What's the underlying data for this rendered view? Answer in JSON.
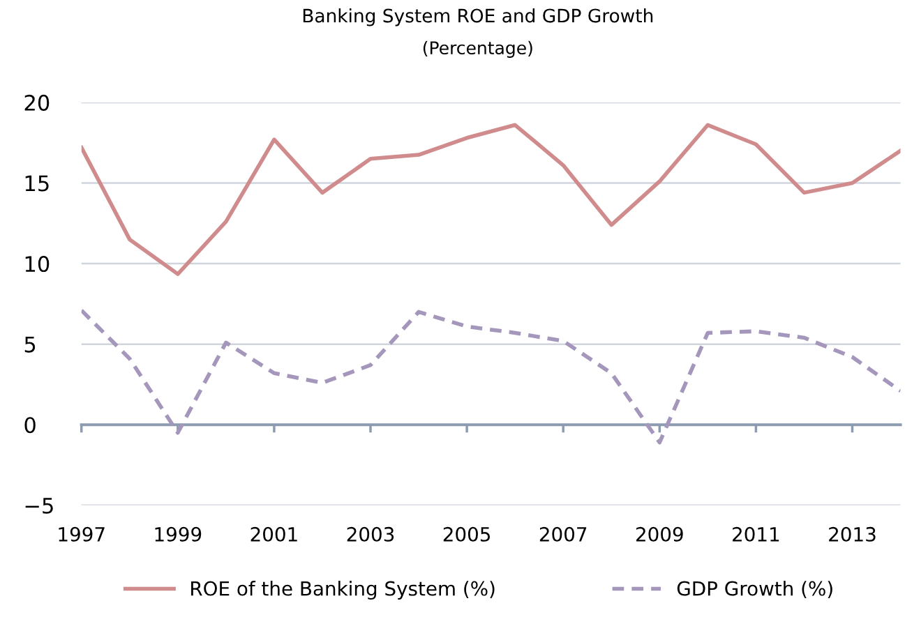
{
  "chart_data": {
    "type": "line",
    "title": "Banking System ROE and GDP Growth",
    "subtitle": "(Percentage)",
    "x": [
      1997,
      1998,
      1999,
      2000,
      2001,
      2002,
      2003,
      2004,
      2005,
      2006,
      2007,
      2008,
      2009,
      2010,
      2011,
      2012,
      2013,
      2014
    ],
    "series": [
      {
        "name": "ROE of the Banking System (%)",
        "color": "#d08c8c",
        "line_style": "solid",
        "values": [
          17.2,
          11.5,
          9.35,
          12.6,
          17.7,
          14.4,
          16.5,
          16.75,
          17.8,
          18.6,
          16.1,
          12.4,
          15.1,
          18.6,
          17.4,
          14.4,
          15.0,
          17.0
        ]
      },
      {
        "name": "GDP Growth (%)",
        "color": "#a497bb",
        "line_style": "dashed",
        "values": [
          7.1,
          4.1,
          -0.5,
          5.1,
          3.2,
          2.6,
          3.7,
          7.0,
          6.1,
          5.7,
          5.2,
          3.2,
          -1.1,
          5.7,
          5.8,
          5.4,
          4.2,
          2.1
        ]
      }
    ],
    "xlim": [
      1997,
      2014
    ],
    "xticks": [
      1997,
      1999,
      2001,
      2003,
      2005,
      2007,
      2009,
      2011,
      2013
    ],
    "ylim": [
      -5,
      20
    ],
    "yticks": [
      {
        "value": -5,
        "label": "−5"
      },
      0,
      5,
      10,
      15,
      20
    ],
    "grid": "y",
    "legend": "bottom",
    "marker": "none"
  }
}
